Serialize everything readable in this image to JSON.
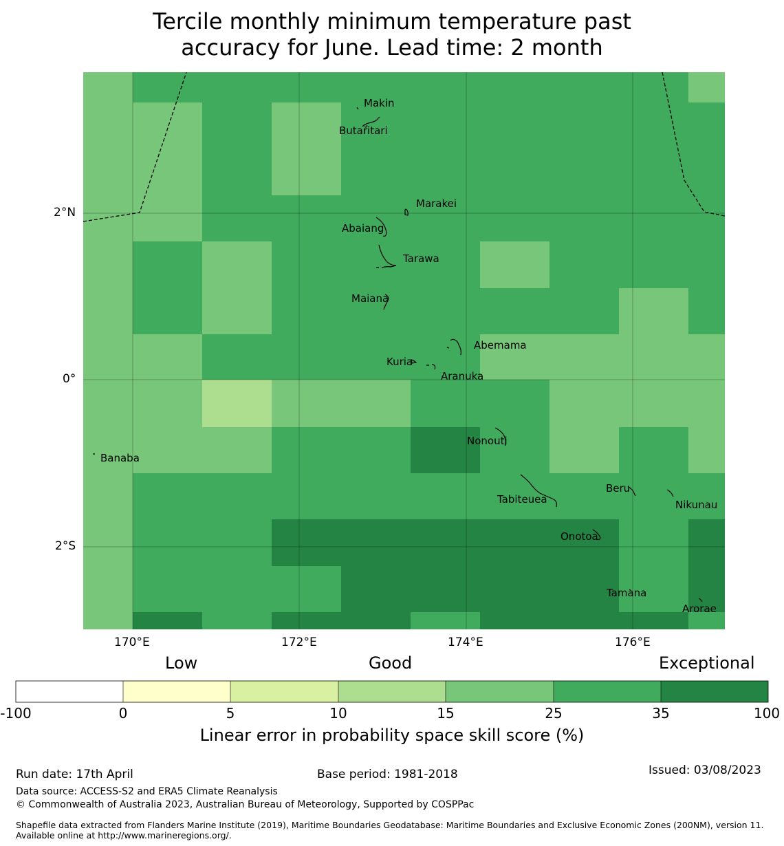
{
  "title_line1": "Tercile monthly minimum temperature past",
  "title_line2": "accuracy for June. Lead time: 2 month",
  "map": {
    "lat_ticks": [
      "2°N",
      "0°",
      "2°S"
    ],
    "lon_ticks": [
      "170°E",
      "172°E",
      "174°E",
      "176°E"
    ],
    "places": [
      {
        "name": "Makin",
        "lon": 172.78,
        "lat": 3.33
      },
      {
        "name": "Butaritari",
        "lon": 172.8,
        "lat": 3.05
      },
      {
        "name": "Marakei",
        "lon": 173.25,
        "lat": 2.01
      },
      {
        "name": "Abaiang",
        "lon": 172.98,
        "lat": 1.88
      },
      {
        "name": "Tarawa",
        "lon": 173.05,
        "lat": 1.4
      },
      {
        "name": "Maiana",
        "lon": 173.02,
        "lat": 0.93
      },
      {
        "name": "Abemama",
        "lon": 173.9,
        "lat": 0.4
      },
      {
        "name": "Kuria",
        "lon": 173.4,
        "lat": 0.23
      },
      {
        "name": "Aranuka",
        "lon": 173.62,
        "lat": 0.16
      },
      {
        "name": "Nonouti",
        "lon": 174.4,
        "lat": -0.65
      },
      {
        "name": "Banaba",
        "lon": 169.54,
        "lat": -0.87
      },
      {
        "name": "Tabiteuea",
        "lon": 174.8,
        "lat": -1.4
      },
      {
        "name": "Beru",
        "lon": 176.0,
        "lat": -1.33
      },
      {
        "name": "Nikunau",
        "lon": 176.45,
        "lat": -1.37
      },
      {
        "name": "Onotoa",
        "lon": 175.55,
        "lat": -1.8
      },
      {
        "name": "Tamana",
        "lon": 175.98,
        "lat": -2.5
      },
      {
        "name": "Arorae",
        "lon": 176.82,
        "lat": -2.64
      }
    ]
  },
  "legend": {
    "categories": [
      "Low",
      "Good",
      "Exceptional"
    ],
    "boundaries": [
      "-100",
      "0",
      "5",
      "10",
      "15",
      "25",
      "35",
      "100"
    ],
    "colors": [
      "#ffffff",
      "#ffffcc",
      "#d9f0a3",
      "#addd8e",
      "#78c679",
      "#41ab5d",
      "#238443"
    ],
    "title": "Linear error in probability space skill score (%)"
  },
  "footer": {
    "run_date": "Run date: 17th April",
    "base_period": "Base period: 1981-2018",
    "issued": "Issued: 03/08/2023",
    "data_source": "Data source: ACCESS-S2 and ERA5 Climate Reanalysis",
    "copyright": "© Commonwealth of Australia 2023, Australian Bureau of Meteorology, Supported by COSPPac",
    "shapefile": "Shapefile data extracted from Flanders Marine Institute (2019), Maritime Boundaries Geodatabase: Maritime Boundaries and Exclusive Economic Zones (200NM), version 11. Available online at http://www.marineregions.org/."
  }
}
